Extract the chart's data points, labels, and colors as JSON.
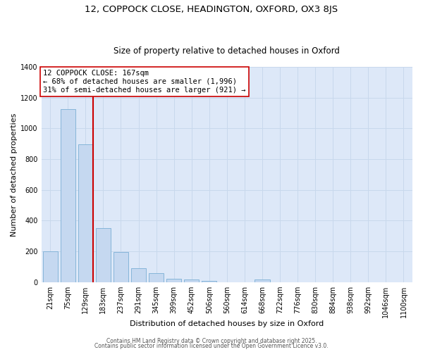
{
  "title_line1": "12, COPPOCK CLOSE, HEADINGTON, OXFORD, OX3 8JS",
  "title_line2": "Size of property relative to detached houses in Oxford",
  "xlabel": "Distribution of detached houses by size in Oxford",
  "ylabel": "Number of detached properties",
  "categories": [
    "21sqm",
    "75sqm",
    "129sqm",
    "183sqm",
    "237sqm",
    "291sqm",
    "345sqm",
    "399sqm",
    "452sqm",
    "506sqm",
    "560sqm",
    "614sqm",
    "668sqm",
    "722sqm",
    "776sqm",
    "830sqm",
    "884sqm",
    "938sqm",
    "992sqm",
    "1046sqm",
    "1100sqm"
  ],
  "values": [
    200,
    1125,
    895,
    350,
    195,
    90,
    57,
    22,
    15,
    10,
    0,
    0,
    18,
    0,
    0,
    0,
    0,
    0,
    0,
    0,
    0
  ],
  "bar_color": "#c5d8f0",
  "bar_edge_color": "#7aafd4",
  "bar_edge_width": 0.6,
  "red_line_index": 2,
  "red_line_color": "#cc0000",
  "annotation_text": "12 COPPOCK CLOSE: 167sqm\n← 68% of detached houses are smaller (1,996)\n31% of semi-detached houses are larger (921) →",
  "annotation_box_color": "#ffffff",
  "annotation_box_edge_color": "#cc0000",
  "annotation_fontsize": 7.5,
  "ylim": [
    0,
    1400
  ],
  "yticks": [
    0,
    200,
    400,
    600,
    800,
    1000,
    1200,
    1400
  ],
  "grid_color": "#c8d8ec",
  "bg_color": "#dde8f8",
  "footer_line1": "Contains HM Land Registry data © Crown copyright and database right 2025.",
  "footer_line2": "Contains public sector information licensed under the Open Government Licence v3.0.",
  "title_fontsize": 9.5,
  "subtitle_fontsize": 8.5,
  "axis_label_fontsize": 8,
  "tick_fontsize": 7
}
